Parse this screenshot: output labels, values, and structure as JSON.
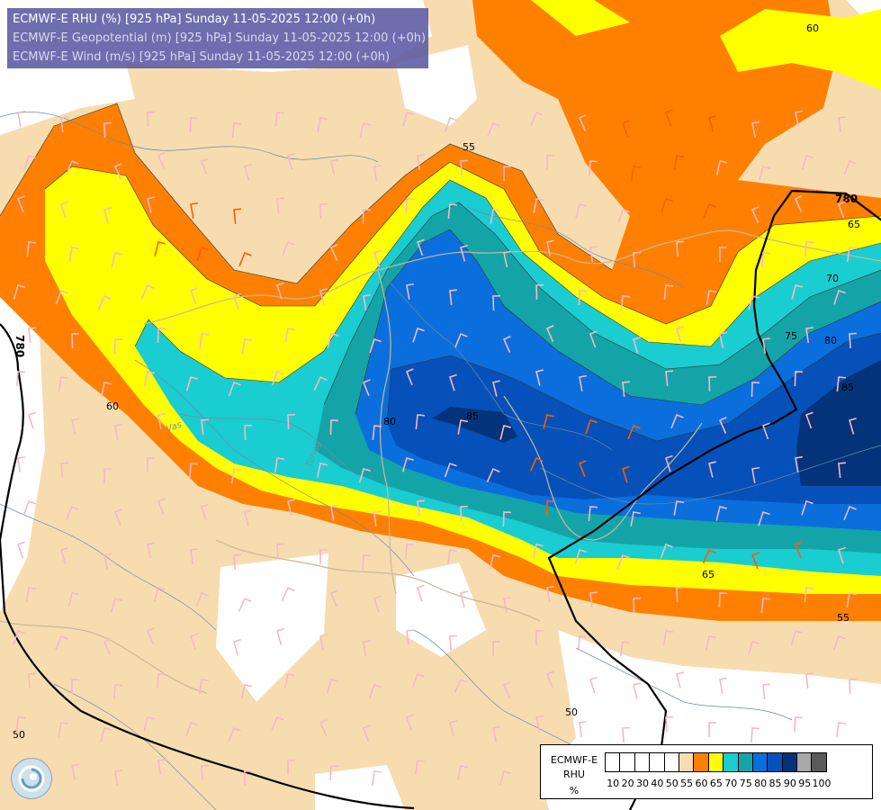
{
  "header": {
    "line1": "ECMWF-E RHU (%) [925 hPa] Sunday 11-05-2025 12:00 (+0h)",
    "line2": "ECMWF-E Geopotential (m) [925 hPa] Sunday 11-05-2025 12:00 (+0h)",
    "line3": "ECMWF-E Wind (m/s) [925 hPa] Sunday 11-05-2025 12:00 (+0h)"
  },
  "legend": {
    "model": "ECMWF-E",
    "variable": "RHU",
    "unit": "%",
    "levels": [
      "10",
      "20",
      "30",
      "40",
      "50",
      "55",
      "60",
      "65",
      "70",
      "75",
      "80",
      "85",
      "90",
      "95",
      "100"
    ],
    "colors": [
      "#ffffff",
      "#ffffff",
      "#ffffff",
      "#ffffff",
      "#ffffff",
      "#f7dcb0",
      "#ff8000",
      "#ffff00",
      "#1acdd0",
      "#14a4a8",
      "#0a6fdc",
      "#0551b9",
      "#04337a",
      "#a8a8a8",
      "#5a5a5a"
    ]
  },
  "contour_labels": {
    "rhu": [
      "55",
      "60",
      "60",
      "65",
      "65",
      "70",
      "75",
      "80",
      "80",
      "85",
      "85",
      "55",
      "50",
      "50"
    ],
    "geopotential": [
      "780",
      "780"
    ]
  },
  "river_labels": [
    "Vas",
    "Tuhaĝ"
  ],
  "colors": {
    "title_bg": "#5555a0",
    "geo_contour": "#000000",
    "wind_barb": "#f4b8c8",
    "wind_barb_orange": "#ff5a00"
  }
}
